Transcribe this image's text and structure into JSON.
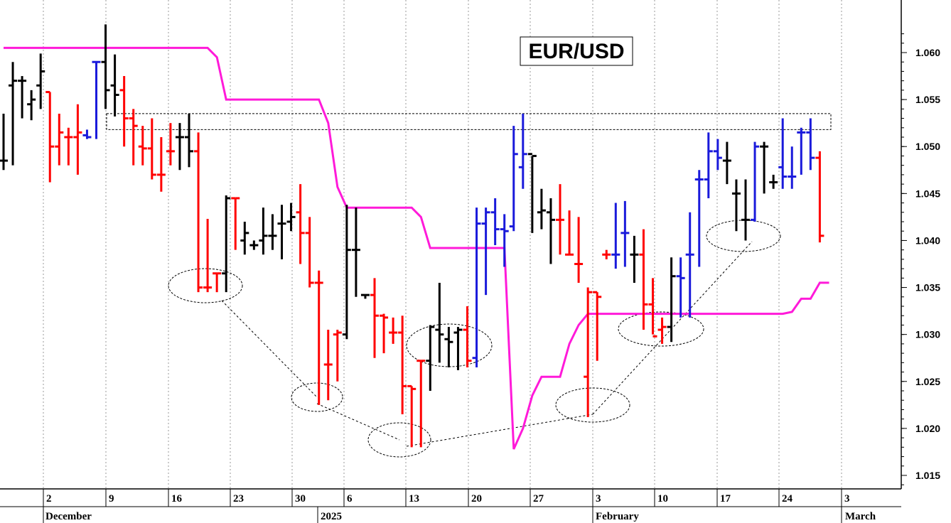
{
  "chart_data": {
    "type": "ohlc",
    "title": "EUR/USD",
    "colors": {
      "up_streak": "#1a1adb",
      "down_streak": "#ff0000",
      "neutral": "#000000",
      "trail_line": "#ff1ad9"
    },
    "y_axis": {
      "ticks": [
        "1.015",
        "1.020",
        "1.025",
        "1.030",
        "1.035",
        "1.040",
        "1.045",
        "1.050",
        "1.055",
        "1.060"
      ],
      "range": [
        1.0125,
        1.0625
      ]
    },
    "x_axis": {
      "day_ticks": [
        "2",
        "9",
        "16",
        "23",
        "30",
        "6",
        "13",
        "20",
        "27",
        "3",
        "10",
        "17",
        "24",
        "3"
      ],
      "month_labels": [
        "December",
        "2025",
        "February",
        "March"
      ]
    },
    "bars": [
      {
        "date": "2024-11-29",
        "open": 1.0485,
        "high": 1.0535,
        "low": 1.0475,
        "close": 1.0485,
        "color": "neutral"
      },
      {
        "date": "2024-12-02",
        "open": 1.0565,
        "high": 1.059,
        "low": 1.048,
        "close": 1.057,
        "color": "neutral"
      },
      {
        "date": "2024-12-03",
        "open": 1.057,
        "high": 1.0575,
        "low": 1.053,
        "close": 1.057,
        "color": "neutral"
      },
      {
        "date": "2024-12-04",
        "open": 1.0545,
        "high": 1.056,
        "low": 1.0528,
        "close": 1.055,
        "color": "neutral"
      },
      {
        "date": "2024-12-05",
        "open": 1.0565,
        "high": 1.0599,
        "low": 1.054,
        "close": 1.058,
        "color": "neutral"
      },
      {
        "date": "2024-12-06",
        "open": 1.0558,
        "high": 1.0558,
        "low": 1.0462,
        "close": 1.05,
        "color": "down_streak"
      },
      {
        "date": "2024-12-09",
        "open": 1.05,
        "high": 1.0535,
        "low": 1.048,
        "close": 1.0515,
        "color": "down_streak"
      },
      {
        "date": "2024-12-10",
        "open": 1.051,
        "high": 1.052,
        "low": 1.048,
        "close": 1.051,
        "color": "down_streak"
      },
      {
        "date": "2024-12-11",
        "open": 1.051,
        "high": 1.0545,
        "low": 1.047,
        "close": 1.0515,
        "color": "down_streak"
      },
      {
        "date": "2024-12-12",
        "open": 1.0512,
        "high": 1.0518,
        "low": 1.0508,
        "close": 1.051,
        "color": "up_streak"
      },
      {
        "date": "2024-12-13",
        "open": 1.059,
        "high": 1.059,
        "low": 1.0508,
        "close": 1.059,
        "color": "up_streak"
      },
      {
        "date": "2024-12-16",
        "open": 1.059,
        "high": 1.063,
        "low": 1.054,
        "close": 1.056,
        "color": "neutral"
      },
      {
        "date": "2024-12-17",
        "open": 1.0565,
        "high": 1.0598,
        "low": 1.0532,
        "close": 1.0555,
        "color": "neutral"
      },
      {
        "date": "2024-12-18",
        "open": 1.056,
        "high": 1.0575,
        "low": 1.05,
        "close": 1.053,
        "color": "down_streak"
      },
      {
        "date": "2024-12-19",
        "open": 1.053,
        "high": 1.054,
        "low": 1.048,
        "close": 1.0522,
        "color": "down_streak"
      },
      {
        "date": "2024-12-20",
        "open": 1.05,
        "high": 1.0522,
        "low": 1.048,
        "close": 1.0498,
        "color": "down_streak"
      },
      {
        "date": "2024-12-23",
        "open": 1.0498,
        "high": 1.053,
        "low": 1.0465,
        "close": 1.047,
        "color": "down_streak"
      },
      {
        "date": "2024-12-24",
        "open": 1.047,
        "high": 1.051,
        "low": 1.0452,
        "close": 1.047,
        "color": "down_streak"
      },
      {
        "date": "2024-12-25",
        "open": 1.0495,
        "high": 1.0525,
        "low": 1.048,
        "close": 1.0495,
        "color": "down_streak"
      },
      {
        "date": "2024-12-26",
        "open": 1.051,
        "high": 1.0525,
        "low": 1.0475,
        "close": 1.051,
        "color": "neutral"
      },
      {
        "date": "2024-12-27",
        "open": 1.051,
        "high": 1.0535,
        "low": 1.0478,
        "close": 1.0495,
        "color": "neutral"
      },
      {
        "date": "2024-12-30",
        "open": 1.0495,
        "high": 1.0515,
        "low": 1.0345,
        "close": 1.035,
        "color": "down_streak"
      },
      {
        "date": "2024-12-31",
        "open": 1.035,
        "high": 1.0423,
        "low": 1.0345,
        "close": 1.035,
        "color": "down_streak"
      },
      {
        "date": "2025-01-01",
        "open": 1.0365,
        "high": 1.0365,
        "low": 1.0345,
        "close": 1.0365,
        "color": "down_streak"
      },
      {
        "date": "2025-01-02",
        "open": 1.0365,
        "high": 1.0448,
        "low": 1.0345,
        "close": 1.0445,
        "color": "neutral"
      },
      {
        "date": "2025-01-03",
        "open": 1.0445,
        "high": 1.0445,
        "low": 1.039,
        "close": 1.0445,
        "color": "down_streak"
      },
      {
        "date": "2025-01-06",
        "open": 1.04,
        "high": 1.042,
        "low": 1.0385,
        "close": 1.0408,
        "color": "neutral"
      },
      {
        "date": "2025-01-07",
        "open": 1.0395,
        "high": 1.04,
        "low": 1.039,
        "close": 1.0395,
        "color": "neutral"
      },
      {
        "date": "2025-01-08",
        "open": 1.04,
        "high": 1.0435,
        "low": 1.0385,
        "close": 1.0405,
        "color": "neutral"
      },
      {
        "date": "2025-01-09",
        "open": 1.0405,
        "high": 1.0428,
        "low": 1.039,
        "close": 1.0405,
        "color": "neutral"
      },
      {
        "date": "2025-01-10",
        "open": 1.0418,
        "high": 1.0438,
        "low": 1.038,
        "close": 1.0418,
        "color": "neutral"
      },
      {
        "date": "2025-01-13",
        "open": 1.042,
        "high": 1.044,
        "low": 1.041,
        "close": 1.0425,
        "color": "neutral"
      },
      {
        "date": "2025-01-14",
        "open": 1.043,
        "high": 1.046,
        "low": 1.0375,
        "close": 1.0408,
        "color": "down_streak"
      },
      {
        "date": "2025-01-15",
        "open": 1.0408,
        "high": 1.0425,
        "low": 1.035,
        "close": 1.0355,
        "color": "down_streak"
      },
      {
        "date": "2025-01-16",
        "open": 1.0355,
        "high": 1.0368,
        "low": 1.0225,
        "close": 1.0355,
        "color": "down_streak"
      },
      {
        "date": "2025-01-17",
        "open": 1.0268,
        "high": 1.0305,
        "low": 1.023,
        "close": 1.0268,
        "color": "down_streak"
      },
      {
        "date": "2025-01-20",
        "open": 1.03,
        "high": 1.0305,
        "low": 1.025,
        "close": 1.0302,
        "color": "down_streak"
      },
      {
        "date": "2025-01-21",
        "open": 1.03,
        "high": 1.0438,
        "low": 1.0295,
        "close": 1.039,
        "color": "neutral"
      },
      {
        "date": "2025-01-22",
        "open": 1.039,
        "high": 1.0435,
        "low": 1.034,
        "close": 1.039,
        "color": "neutral"
      },
      {
        "date": "2025-01-23",
        "open": 1.0342,
        "high": 1.0342,
        "low": 1.0338,
        "close": 1.0342,
        "color": "neutral"
      },
      {
        "date": "2025-01-24",
        "open": 1.0342,
        "high": 1.036,
        "low": 1.0275,
        "close": 1.032,
        "color": "down_streak"
      },
      {
        "date": "2025-01-27",
        "open": 1.032,
        "high": 1.0322,
        "low": 1.028,
        "close": 1.0318,
        "color": "down_streak"
      },
      {
        "date": "2025-01-28",
        "open": 1.0302,
        "high": 1.0318,
        "low": 1.029,
        "close": 1.0302,
        "color": "down_streak"
      },
      {
        "date": "2025-01-29",
        "open": 1.0302,
        "high": 1.032,
        "low": 1.0215,
        "close": 1.0245,
        "color": "down_streak"
      },
      {
        "date": "2025-01-30",
        "open": 1.0245,
        "high": 1.0245,
        "low": 1.018,
        "close": 1.0242,
        "color": "down_streak"
      },
      {
        "date": "2025-01-31",
        "open": 1.0272,
        "high": 1.0272,
        "low": 1.018,
        "close": 1.0272,
        "color": "down_streak"
      },
      {
        "date": "2025-02-03",
        "open": 1.0272,
        "high": 1.031,
        "low": 1.024,
        "close": 1.0308,
        "color": "neutral"
      },
      {
        "date": "2025-02-04",
        "open": 1.0305,
        "high": 1.0355,
        "low": 1.027,
        "close": 1.03,
        "color": "neutral"
      },
      {
        "date": "2025-02-05",
        "open": 1.0295,
        "high": 1.0308,
        "low": 1.0265,
        "close": 1.0292,
        "color": "neutral"
      },
      {
        "date": "2025-02-06",
        "open": 1.0302,
        "high": 1.0308,
        "low": 1.0262,
        "close": 1.0305,
        "color": "neutral"
      },
      {
        "date": "2025-02-07",
        "open": 1.0305,
        "high": 1.033,
        "low": 1.0265,
        "close": 1.0272,
        "color": "down_streak"
      },
      {
        "date": "2025-02-10",
        "open": 1.0275,
        "high": 1.0435,
        "low": 1.0265,
        "close": 1.0418,
        "color": "up_streak"
      },
      {
        "date": "2025-02-11",
        "open": 1.0418,
        "high": 1.0435,
        "low": 1.0342,
        "close": 1.043,
        "color": "up_streak"
      },
      {
        "date": "2025-02-12",
        "open": 1.043,
        "high": 1.0445,
        "low": 1.0395,
        "close": 1.0412,
        "color": "up_streak"
      },
      {
        "date": "2025-02-13",
        "open": 1.0412,
        "high": 1.0428,
        "low": 1.0372,
        "close": 1.041,
        "color": "up_streak"
      },
      {
        "date": "2025-02-14",
        "open": 1.0415,
        "high": 1.0522,
        "low": 1.041,
        "close": 1.0492,
        "color": "up_streak"
      },
      {
        "date": "2025-02-17",
        "open": 1.0478,
        "high": 1.0535,
        "low": 1.0455,
        "close": 1.0492,
        "color": "up_streak"
      },
      {
        "date": "2025-02-18",
        "open": 1.0492,
        "high": 1.049,
        "low": 1.0408,
        "close": 1.049,
        "color": "neutral"
      },
      {
        "date": "2025-02-19",
        "open": 1.043,
        "high": 1.0455,
        "low": 1.0412,
        "close": 1.0432,
        "color": "neutral"
      },
      {
        "date": "2025-02-20",
        "open": 1.043,
        "high": 1.0445,
        "low": 1.0375,
        "close": 1.0422,
        "color": "neutral"
      },
      {
        "date": "2025-02-21",
        "open": 1.0422,
        "high": 1.046,
        "low": 1.0385,
        "close": 1.0422,
        "color": "down_streak"
      },
      {
        "date": "2025-02-24",
        "open": 1.0385,
        "high": 1.0432,
        "low": 1.0385,
        "close": 1.0385,
        "color": "down_streak"
      },
      {
        "date": "2025-02-25",
        "open": 1.0375,
        "high": 1.0425,
        "low": 1.0355,
        "close": 1.0375,
        "color": "down_streak"
      },
      {
        "date": "2025-02-26",
        "open": 1.0255,
        "high": 1.035,
        "low": 1.0212,
        "close": 1.0345,
        "color": "down_streak"
      },
      {
        "date": "2025-02-27",
        "open": 1.0345,
        "high": 1.0345,
        "low": 1.0272,
        "close": 1.034,
        "color": "down_streak"
      },
      {
        "date": "2025-02-28",
        "open": 1.0385,
        "high": 1.039,
        "low": 1.038,
        "close": 1.0385,
        "color": "down_streak"
      },
      {
        "date": "2025-03-03",
        "open": 1.0385,
        "high": 1.044,
        "low": 1.037,
        "close": 1.0385,
        "color": "up_streak"
      },
      {
        "date": "2025-03-04",
        "open": 1.0408,
        "high": 1.0442,
        "low": 1.0372,
        "close": 1.0408,
        "color": "up_streak"
      },
      {
        "date": "2025-03-05",
        "open": 1.0385,
        "high": 1.0405,
        "low": 1.0355,
        "close": 1.0385,
        "color": "neutral"
      },
      {
        "date": "2025-03-06",
        "open": 1.0385,
        "high": 1.0412,
        "low": 1.0305,
        "close": 1.0332,
        "color": "down_streak"
      },
      {
        "date": "2025-03-07",
        "open": 1.0332,
        "high": 1.036,
        "low": 1.03,
        "close": 1.0298,
        "color": "down_streak"
      },
      {
        "date": "2025-03-10",
        "open": 1.0305,
        "high": 1.0318,
        "low": 1.029,
        "close": 1.0308,
        "color": "down_streak"
      },
      {
        "date": "2025-03-11",
        "open": 1.0308,
        "high": 1.0382,
        "low": 1.0292,
        "close": 1.0362,
        "color": "neutral"
      },
      {
        "date": "2025-03-12",
        "open": 1.0362,
        "high": 1.0382,
        "low": 1.0318,
        "close": 1.036,
        "color": "up_streak"
      },
      {
        "date": "2025-03-13",
        "open": 1.0385,
        "high": 1.043,
        "low": 1.0318,
        "close": 1.0385,
        "color": "up_streak"
      },
      {
        "date": "2025-03-14",
        "open": 1.0465,
        "high": 1.0475,
        "low": 1.0372,
        "close": 1.0465,
        "color": "up_streak"
      },
      {
        "date": "2025-03-17",
        "open": 1.0465,
        "high": 1.0515,
        "low": 1.0445,
        "close": 1.0495,
        "color": "up_streak"
      },
      {
        "date": "2025-03-18",
        "open": 1.0495,
        "high": 1.0508,
        "low": 1.0475,
        "close": 1.0488,
        "color": "up_streak"
      },
      {
        "date": "2025-03-19",
        "open": 1.0485,
        "high": 1.0505,
        "low": 1.046,
        "close": 1.0485,
        "color": "neutral"
      },
      {
        "date": "2025-03-20",
        "open": 1.045,
        "high": 1.0465,
        "low": 1.041,
        "close": 1.045,
        "color": "neutral"
      },
      {
        "date": "2025-03-21",
        "open": 1.0422,
        "high": 1.0465,
        "low": 1.04,
        "close": 1.0422,
        "color": "neutral"
      },
      {
        "date": "2025-03-24",
        "open": 1.0422,
        "high": 1.0505,
        "low": 1.042,
        "close": 1.05,
        "color": "up_streak"
      },
      {
        "date": "2025-03-25",
        "open": 1.05,
        "high": 1.0505,
        "low": 1.045,
        "close": 1.05,
        "color": "neutral"
      },
      {
        "date": "2025-03-26",
        "open": 1.0462,
        "high": 1.047,
        "low": 1.0455,
        "close": 1.0462,
        "color": "neutral"
      },
      {
        "date": "2025-03-27",
        "open": 1.0478,
        "high": 1.053,
        "low": 1.0455,
        "close": 1.0468,
        "color": "up_streak"
      },
      {
        "date": "2025-03-28",
        "open": 1.0468,
        "high": 1.05,
        "low": 1.0455,
        "close": 1.0468,
        "color": "up_streak"
      },
      {
        "date": "2025-03-31",
        "open": 1.0515,
        "high": 1.052,
        "low": 1.047,
        "close": 1.0515,
        "color": "up_streak"
      },
      {
        "date": "2025-04-01",
        "open": 1.0515,
        "high": 1.053,
        "low": 1.0475,
        "close": 1.0488,
        "color": "up_streak"
      },
      {
        "date": "2025-04-02",
        "open": 1.0488,
        "high": 1.0495,
        "low": 1.0398,
        "close": 1.0405,
        "color": "down_streak"
      }
    ],
    "trail_line": [
      [
        1.0605,
        1.0605,
        1.0605,
        1.0605,
        1.0605,
        1.0605,
        1.0605,
        1.0605,
        1.0605,
        1.0605,
        1.0605,
        1.0605,
        1.0605,
        1.0605,
        1.0605,
        1.0605,
        1.0605,
        1.0605,
        1.0605,
        1.0605,
        1.0605,
        1.0605,
        1.0605,
        1.0595,
        1.055,
        1.055,
        1.055,
        1.055,
        1.055,
        1.055,
        1.055,
        1.055,
        1.055,
        1.055,
        1.055,
        1.0525,
        1.0457,
        1.0435,
        1.0435,
        1.0435,
        1.0435,
        1.0435,
        1.0435,
        1.0435,
        1.0435,
        1.0425,
        1.0392,
        1.0392,
        1.0392,
        1.0392,
        1.0392,
        1.0392,
        1.0392,
        1.0392,
        1.0392,
        1.0178,
        1.02,
        1.0235,
        1.0255,
        1.0255,
        1.0255,
        1.029,
        1.031,
        1.0322,
        1.0322,
        1.0322,
        1.0322,
        1.0322,
        1.0322,
        1.0322,
        1.0322,
        1.0322,
        1.0322,
        1.0322,
        1.0322,
        1.0322,
        1.0322,
        1.0322,
        1.0322,
        1.0322,
        1.0322,
        1.0322,
        1.0322,
        1.0322,
        1.0322,
        1.0324,
        1.0338,
        1.0338,
        1.0355,
        1.0355
      ]
    ],
    "resistance_zone": {
      "low": 1.0518,
      "high": 1.0535
    },
    "grid": true,
    "grid_style": "dotted-vertical"
  }
}
